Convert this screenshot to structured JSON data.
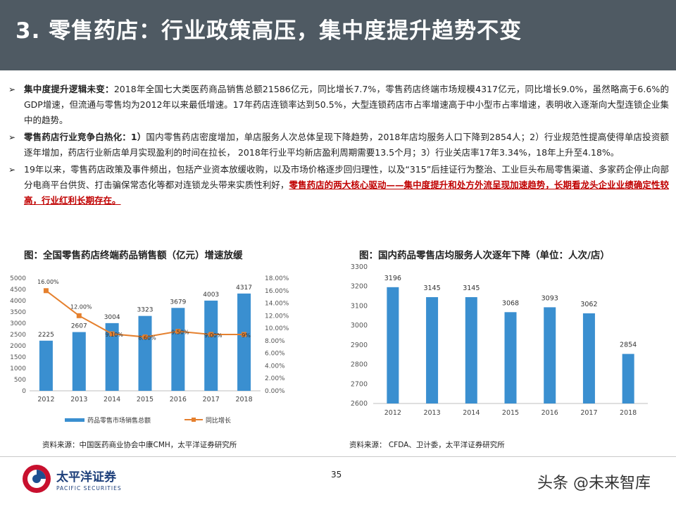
{
  "header": {
    "title": "3. 零售药店：行业政策高压，集中度提升趋势不变"
  },
  "bullets": [
    {
      "lead": "集中度提升逻辑未变：",
      "text": "2018年全国七大类医药商品销售总额21586亿元，同比增长7.7%，零售药店终端市场规模4317亿元，同比增长9.0%，虽然略高于6.6%的GDP增速，但流通与零售均为2012年以来最低增速。17年药店连锁率达到50.5%，大型连锁药店市占率增速高于中小型市占率增速，表明收入逐渐向大型连锁企业集中的趋势。"
    },
    {
      "lead": "零售药店行业竞争白热化：1）",
      "text": "国内零售药店密度增加，单店服务人次总体呈现下降趋势，2018年店均服务人口下降到2854人；2）行业规范性提高使得单店投资额逐年增加，药店行业新店单月实现盈利的时间在拉长， 2018年行业平均新店盈利周期需要13.5个月；3）行业关店率17年3.34%，18年上升至4.18%。"
    },
    {
      "lead": "",
      "text": "19年以来，零售药店政策及事件频出，包括产业资本放缓收购，以及市场价格逐步回归理性，以及“315”后挂证行为整治、工业巨头布局零售渠道、多家药企停止向部分电商平台供货、打击骗保常态化等都对连锁龙头带来实质性利好，",
      "highlight": "零售药店的两大核心驱动——集中度提升和处方外流呈现加速趋势，长期看龙头企业业绩确定性较高，行业红利长期存在。"
    }
  ],
  "bullet_marker": "➢",
  "chart_left": {
    "title": "图：全国零售药店终端药品销售额（亿元）增速放缓",
    "source": "资料来源：中国医药商业协会中康CMH，太平洋证券研究所",
    "legend_bar": "药品零售市场销售总额",
    "legend_line": "同比增长"
  },
  "chart_right": {
    "title": "图：国内药品零售店均服务人次逐年下降（单位：人次/店）",
    "source": "资料来源： CFDA、卫计委，太平洋证券研究所"
  },
  "chart_data": [
    {
      "type": "bar",
      "categories": [
        "2012",
        "2013",
        "2014",
        "2015",
        "2016",
        "2017",
        "2018"
      ],
      "series": [
        {
          "name": "药品零售市场销售总额",
          "type": "bar",
          "axis": "left",
          "values": [
            2225,
            2607,
            3004,
            3323,
            3679,
            4003,
            4317
          ],
          "labels": [
            "2225",
            "2607",
            "3004",
            "3323",
            "3679",
            "4003",
            "4317"
          ]
        },
        {
          "name": "同比增长",
          "type": "line",
          "axis": "right",
          "values": [
            16.0,
            12.0,
            9.1,
            8.6,
            9.5,
            9.0,
            9.0
          ],
          "labels": [
            "16.00%",
            "12.00%",
            "9.10%",
            "8.60%",
            "9.50%",
            "9.00%",
            "9%"
          ]
        }
      ],
      "ylim": [
        0,
        5000
      ],
      "y_ticks": [
        "0",
        "500",
        "1000",
        "1500",
        "2000",
        "2500",
        "3000",
        "3500",
        "4000",
        "4500",
        "5000"
      ],
      "y2lim": [
        0,
        18
      ],
      "y2_ticks": [
        "0.00%",
        "2.00%",
        "4.00%",
        "6.00%",
        "8.00%",
        "10.00%",
        "12.00%",
        "14.00%",
        "16.00%",
        "18.00%"
      ],
      "grid": false,
      "legend": "bottom",
      "colors": {
        "bar": "#3a8fd0",
        "line": "#e5802e"
      }
    },
    {
      "type": "bar",
      "categories": [
        "2012",
        "2013",
        "2014",
        "2015",
        "2016",
        "2017",
        "2018"
      ],
      "values": [
        3196,
        3145,
        3145,
        3068,
        3093,
        3062,
        2854
      ],
      "labels": [
        "3196",
        "3145",
        "3145",
        "3068",
        "3093",
        "3062",
        "2854"
      ],
      "ylim": [
        2600,
        3300
      ],
      "y_ticks": [
        "2600",
        "2700",
        "2800",
        "2900",
        "3000",
        "3100",
        "3200",
        "3300"
      ],
      "grid": false,
      "colors": {
        "bar": "#3a8fd0"
      }
    }
  ],
  "footer": {
    "page_number": "35",
    "logo_cn": "太平洋证券",
    "logo_en": "PACIFIC SECURITIES",
    "watermark": "头条 @未来智库"
  }
}
